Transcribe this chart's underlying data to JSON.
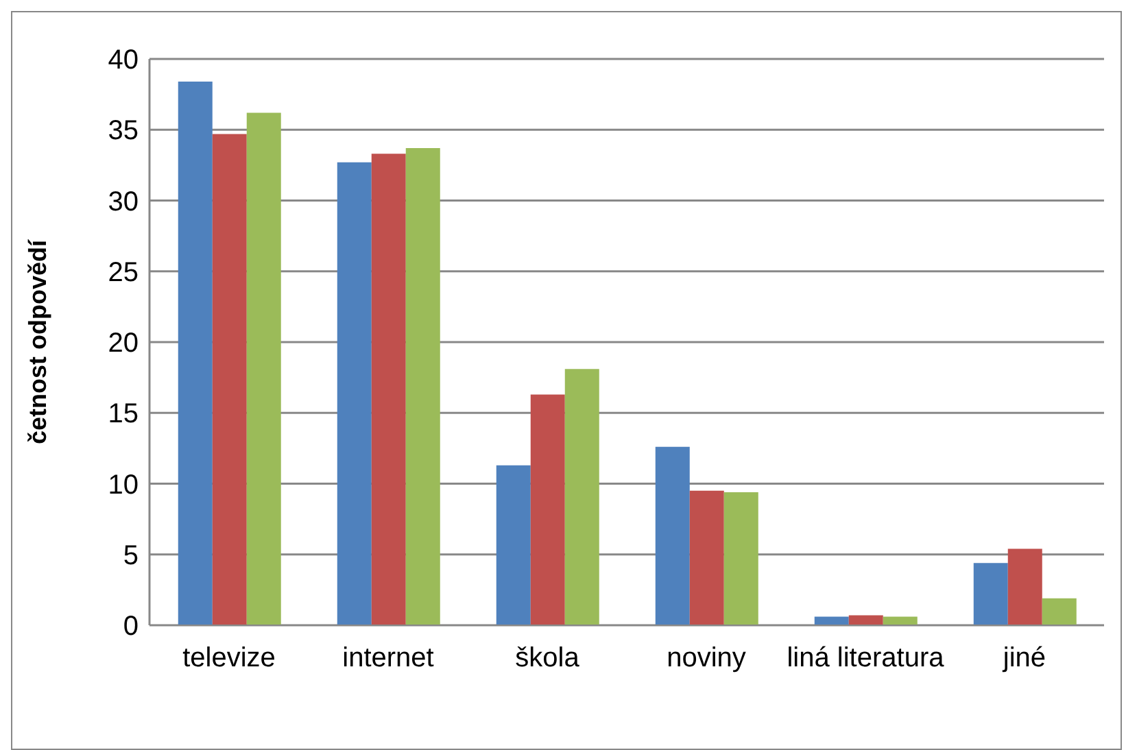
{
  "chart_data": {
    "type": "bar",
    "ylabel": "četnost odpovědí",
    "categories": [
      "televize",
      "internet",
      "škola",
      "noviny",
      "liná literatura",
      "jiné"
    ],
    "series": [
      {
        "color": "#4f81bd",
        "values": [
          38.4,
          32.7,
          11.3,
          12.6,
          0.6,
          4.4
        ]
      },
      {
        "color": "#c0504d",
        "values": [
          34.7,
          33.3,
          16.3,
          9.5,
          0.7,
          5.4
        ]
      },
      {
        "color": "#9bbb59",
        "values": [
          36.2,
          33.7,
          18.1,
          9.4,
          0.6,
          1.9
        ]
      }
    ],
    "ylim": [
      0,
      40
    ],
    "yticks": [
      0,
      5,
      10,
      15,
      20,
      25,
      30,
      35,
      40
    ],
    "grid": "y",
    "legend": false
  }
}
